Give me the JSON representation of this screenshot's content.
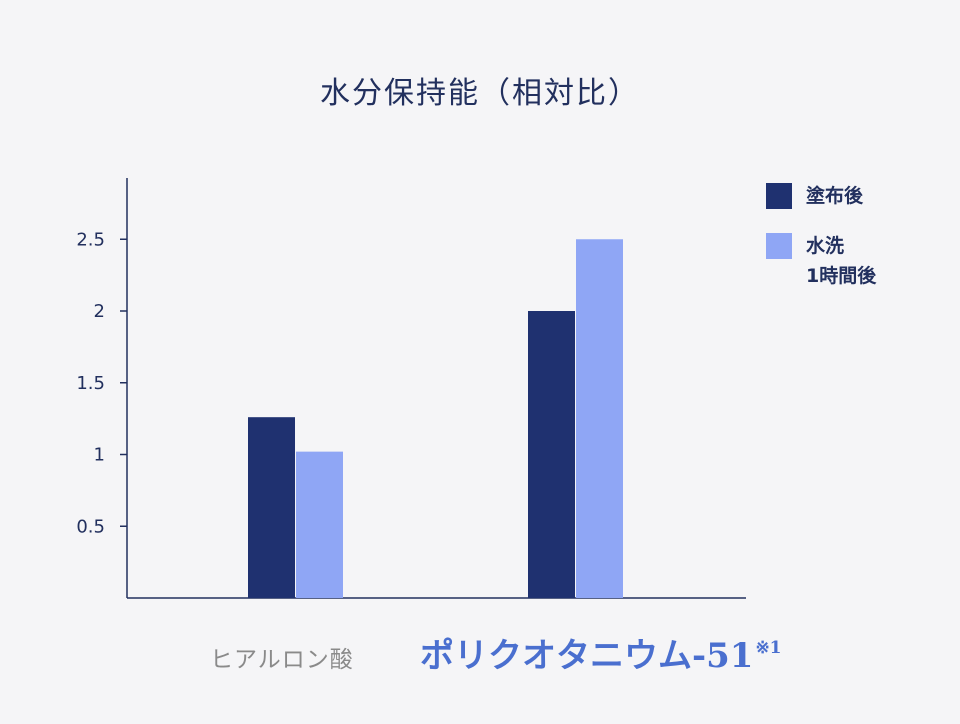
{
  "chart_data": {
    "type": "bar",
    "title": "水分保持能（相対比）",
    "categories": [
      "ヒアルロン酸",
      "ポリクオタニウム-51"
    ],
    "category_note": "※1",
    "series": [
      {
        "name": "塗布後",
        "values": [
          1.26,
          2.0
        ],
        "color": "#1f3170"
      },
      {
        "name": "水洗\n1時間後",
        "values": [
          1.02,
          2.5
        ],
        "color": "#8fa6f5"
      }
    ],
    "yticks": [
      "0.5",
      "1",
      "1.5",
      "2",
      "2.5"
    ],
    "ytick_values": [
      0.5,
      1,
      1.5,
      2,
      2.5
    ],
    "ylim": [
      0,
      2.92
    ],
    "xlabel": "",
    "ylabel": "",
    "grid": false,
    "legend_position": "top-right"
  },
  "colors": {
    "axis": "#22305e",
    "text": "#22305e",
    "background": "#f5f5f7"
  }
}
